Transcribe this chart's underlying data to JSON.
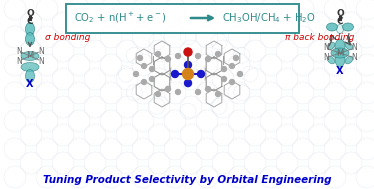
{
  "title": "Tuning Product Selectivity by Orbital Engineering",
  "title_color": "#0000cc",
  "eq_box_color": "#2e8b8b",
  "eq_color": "#2e8b8b",
  "sigma_label": "σ bonding",
  "pi_label": "π back bonding",
  "orbital_color": "#5bbcbc",
  "orbital_edge": "#2a8080",
  "orbital_alpha": 0.82,
  "label_color": "#cc0000",
  "N_color": "#666666",
  "M_color": "#666666",
  "X_color": "#0000cc",
  "bond_color": "#333333",
  "bg_circle_color": "#c8d4e0",
  "metal_color": "#d4831a",
  "N_atom_color": "#1a1acc",
  "axial_O_color": "#cc1111",
  "C_bond_color": "#555555",
  "mol_atom_color": "#aaaaaa",
  "mol_bond_color": "#999999"
}
